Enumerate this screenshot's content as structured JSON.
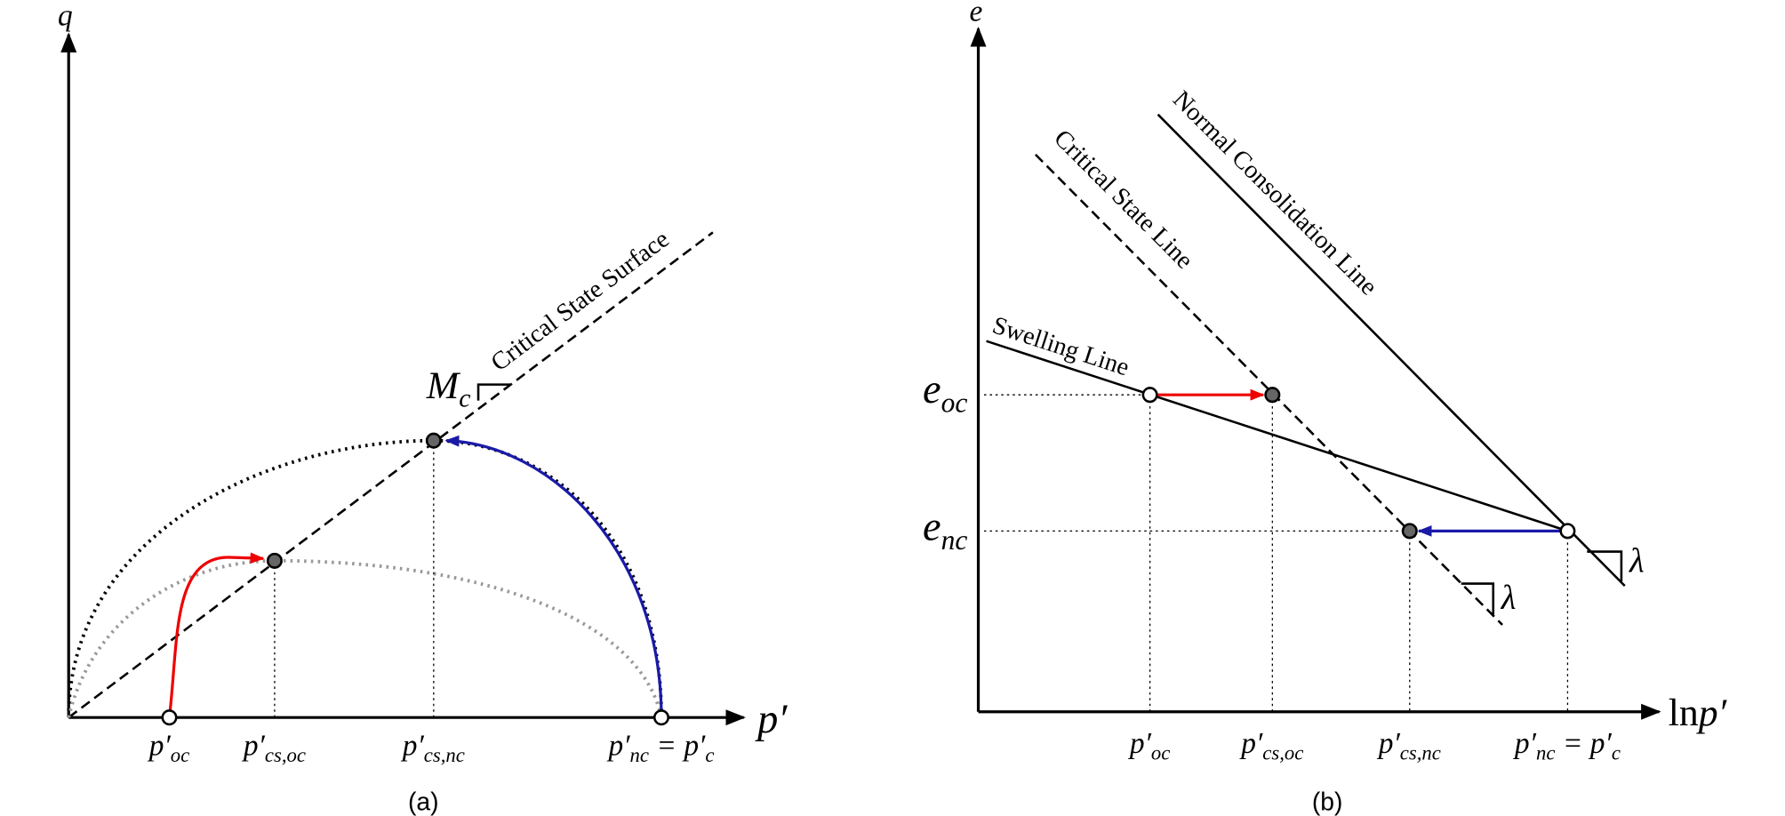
{
  "panel_a": {
    "y_axis_label": "q",
    "x_axis_label": "p′",
    "line_label": "Critical State Surface",
    "slope_label": [
      "M",
      "c"
    ],
    "x_labels": [
      [
        "p′",
        "oc"
      ],
      [
        "p′",
        "cs,oc"
      ],
      [
        "p′",
        "cs,nc"
      ],
      [
        "p′",
        "nc",
        " = p′",
        "c"
      ]
    ],
    "caption": "(a)"
  },
  "panel_b": {
    "y_axis_label": "e",
    "x_axis_label": [
      "ln",
      "p′"
    ],
    "ncl_label": "Normal Consolidation Line",
    "csl_label": "Critical State Line",
    "swelling_label": "Swelling Line",
    "y_labels": [
      [
        "e",
        "oc"
      ],
      [
        "e",
        "nc"
      ]
    ],
    "slope_labels": [
      "λ",
      "λ"
    ],
    "x_labels": [
      [
        "p′",
        "oc"
      ],
      [
        "p′",
        "cs,oc"
      ],
      [
        "p′",
        "cs,nc"
      ],
      [
        "p′",
        "nc",
        " = p′",
        "c"
      ]
    ],
    "caption": "(b)"
  }
}
